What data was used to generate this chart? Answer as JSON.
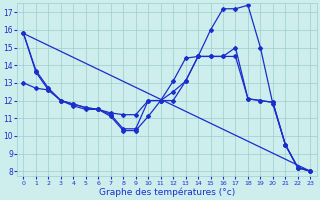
{
  "xlabel": "Graphe des températures (°c)",
  "bg_color": "#ceeeed",
  "line_color": "#1a2ecc",
  "grid_color": "#9ecece",
  "xlim": [
    -0.5,
    23.5
  ],
  "ylim": [
    7.7,
    17.5
  ],
  "yticks": [
    8,
    9,
    10,
    11,
    12,
    13,
    14,
    15,
    16,
    17
  ],
  "xticks": [
    0,
    1,
    2,
    3,
    4,
    5,
    6,
    7,
    8,
    9,
    10,
    11,
    12,
    13,
    14,
    15,
    16,
    17,
    18,
    19,
    20,
    21,
    22,
    23
  ],
  "line1_x": [
    0,
    1,
    2,
    3,
    4,
    5,
    6,
    7,
    8,
    9,
    10,
    11,
    12,
    13,
    14,
    15,
    16,
    17,
    18,
    19,
    20,
    21,
    22,
    23
  ],
  "line1_y": [
    15.8,
    13.7,
    12.7,
    12.0,
    11.8,
    11.6,
    11.5,
    11.1,
    10.3,
    10.3,
    11.1,
    12.0,
    13.1,
    14.4,
    14.5,
    16.0,
    17.2,
    17.2,
    17.4,
    15.0,
    11.8,
    9.5,
    8.2,
    8.0
  ],
  "line2_x": [
    0,
    1,
    2,
    3,
    4,
    5,
    6,
    7,
    8,
    9,
    10,
    11,
    12,
    13,
    14,
    15,
    16,
    17,
    18,
    19,
    20,
    21,
    22,
    23
  ],
  "line2_y": [
    15.8,
    13.6,
    12.6,
    12.0,
    11.7,
    11.5,
    11.5,
    11.2,
    10.4,
    10.4,
    12.0,
    12.0,
    12.0,
    13.1,
    14.5,
    14.5,
    14.5,
    14.5,
    12.1,
    12.0,
    11.9,
    9.5,
    8.2,
    8.0
  ],
  "line3_x": [
    0,
    1,
    2,
    3,
    4,
    5,
    6,
    7,
    8,
    9,
    10,
    11,
    12,
    13,
    14,
    15,
    16,
    17,
    18,
    19,
    20,
    21,
    22,
    23
  ],
  "line3_y": [
    13.0,
    12.7,
    12.6,
    12.0,
    11.8,
    11.6,
    11.5,
    11.3,
    11.2,
    11.2,
    12.0,
    12.0,
    12.5,
    13.1,
    14.5,
    14.5,
    14.5,
    15.0,
    12.1,
    12.0,
    11.9,
    9.5,
    8.2,
    8.0
  ],
  "line4_x": [
    0,
    23
  ],
  "line4_y": [
    15.8,
    8.0
  ]
}
